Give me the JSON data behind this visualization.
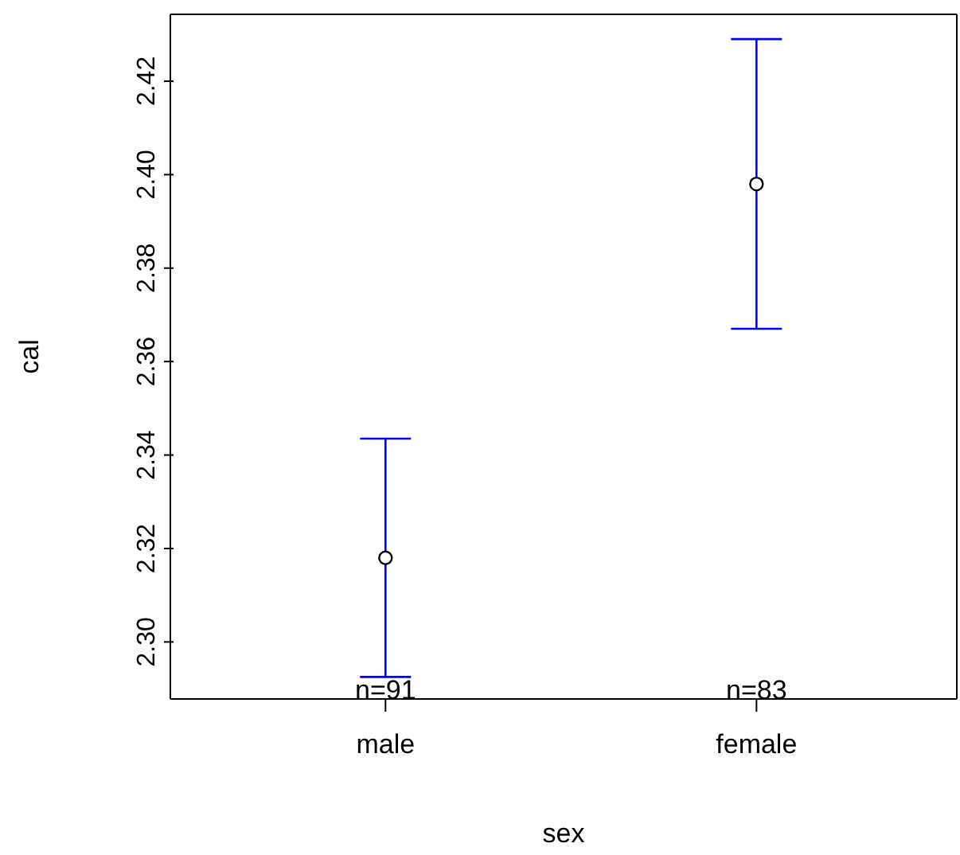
{
  "chart_data": {
    "type": "scatter",
    "xlabel": "sex",
    "ylabel": "cal",
    "categories": [
      "male",
      "female"
    ],
    "series": [
      {
        "color": "#000000",
        "values": [
          2.318,
          2.398
        ],
        "errors": [
          0.0255,
          0.031
        ]
      }
    ],
    "marker": "circle",
    "ylim": [
      2.2878,
      2.4343
    ],
    "yticks": [
      {
        "value": 2.3,
        "label": "2.30"
      },
      2.32,
      2.34,
      2.36,
      2.38,
      {
        "value": 2.4,
        "label": "2.40"
      },
      2.42
    ],
    "annotations": [
      "n=91",
      "n=83"
    ]
  }
}
